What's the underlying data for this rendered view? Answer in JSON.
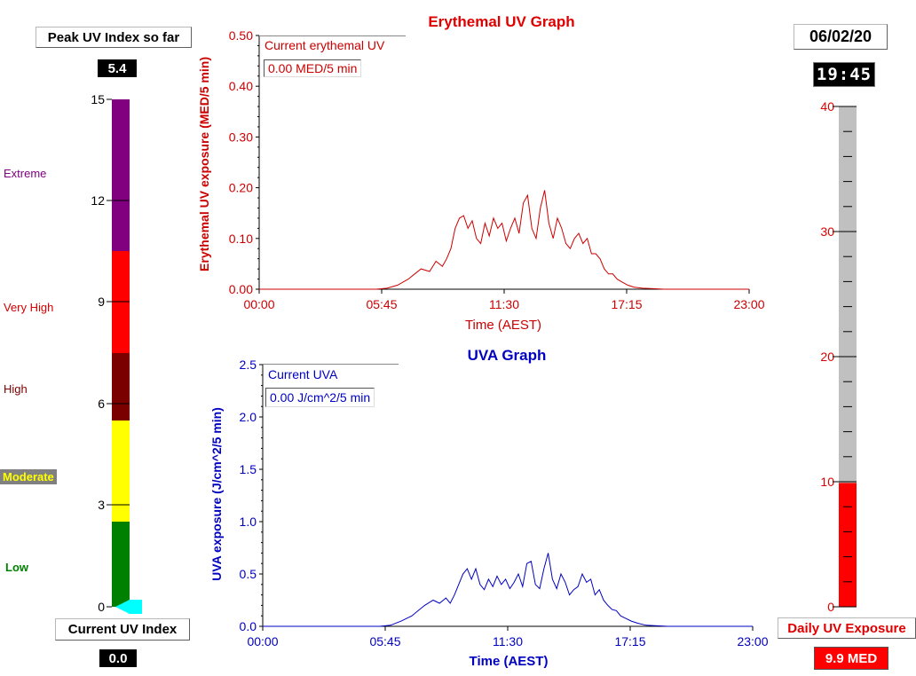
{
  "peak": {
    "title": "Peak UV Index so far",
    "value": "5.4"
  },
  "current": {
    "title": "Current UV Index",
    "value": "0.0"
  },
  "uv_scale": {
    "ticks": [
      "0",
      "3",
      "6",
      "9",
      "12",
      "15"
    ],
    "categories": [
      {
        "label": "Extreme",
        "color": "#800080"
      },
      {
        "label": "Very High",
        "color": "#d40000"
      },
      {
        "label": "High",
        "color": "#7a0000"
      },
      {
        "label": "Moderate",
        "color": "#ffff00"
      },
      {
        "label": "Low",
        "color": "#008000"
      }
    ],
    "current_value": 0.0
  },
  "datetime": {
    "date": "06/02/20",
    "time": "19:45"
  },
  "daily": {
    "title": "Daily UV Exposure",
    "value": "9.9 MED",
    "fill_value": 9.9,
    "ticks": [
      "0",
      "10",
      "20",
      "30",
      "40"
    ]
  },
  "erythemal": {
    "legend_title": "Current erythemal UV",
    "legend_value": "0.00 MED/5 min"
  },
  "uva": {
    "legend_title": "Current UVA",
    "legend_value": "0.00 J/cm^2/5 min"
  },
  "chart_data": [
    {
      "type": "line",
      "title": "Erythemal UV Graph",
      "xlabel": "Time (AEST)",
      "ylabel": "Erythemal UV exposure (MED/5 min)",
      "xlim": [
        0,
        23
      ],
      "ylim": [
        0,
        0.5
      ],
      "x_ticks": [
        "00:00",
        "05:45",
        "11:30",
        "17:15",
        "23:00"
      ],
      "y_ticks": [
        "0.00",
        "0.10",
        "0.20",
        "0.30",
        "0.40",
        "0.50"
      ],
      "color": "#cc0000",
      "series": [
        {
          "x": [
            0,
            5.5,
            6,
            6.5,
            7,
            7.3,
            7.6,
            8,
            8.3,
            8.6,
            8.8,
            9,
            9.2,
            9.4,
            9.6,
            9.8,
            10,
            10.2,
            10.4,
            10.6,
            10.8,
            11,
            11.2,
            11.4,
            11.6,
            11.8,
            12,
            12.2,
            12.4,
            12.6,
            12.8,
            13,
            13.2,
            13.4,
            13.6,
            13.8,
            14,
            14.2,
            14.4,
            14.6,
            14.8,
            15,
            15.2,
            15.4,
            15.6,
            15.8,
            16,
            16.2,
            16.4,
            16.6,
            16.8,
            17,
            17.3,
            17.6,
            18,
            18.5,
            19,
            23
          ],
          "y": [
            0,
            0,
            0.002,
            0.008,
            0.02,
            0.03,
            0.04,
            0.035,
            0.055,
            0.045,
            0.06,
            0.08,
            0.12,
            0.14,
            0.145,
            0.12,
            0.135,
            0.1,
            0.09,
            0.13,
            0.105,
            0.14,
            0.12,
            0.13,
            0.095,
            0.12,
            0.14,
            0.11,
            0.17,
            0.185,
            0.12,
            0.1,
            0.16,
            0.195,
            0.13,
            0.1,
            0.14,
            0.12,
            0.09,
            0.08,
            0.1,
            0.11,
            0.09,
            0.1,
            0.07,
            0.07,
            0.06,
            0.04,
            0.03,
            0.03,
            0.02,
            0.015,
            0.008,
            0.004,
            0.002,
            0.001,
            0,
            0
          ]
        }
      ]
    },
    {
      "type": "line",
      "title": "UVA Graph",
      "xlabel": "Time (AEST)",
      "ylabel": "UVA exposure  (J/cm^2/5 min)",
      "xlim": [
        0,
        23
      ],
      "ylim": [
        0,
        2.5
      ],
      "x_ticks": [
        "00:00",
        "05:45",
        "11:30",
        "17:15",
        "23:00"
      ],
      "y_ticks": [
        "0.0",
        "0.5",
        "1.0",
        "1.5",
        "2.0",
        "2.5"
      ],
      "color": "#0000c0",
      "series": [
        {
          "x": [
            0,
            5.5,
            6,
            6.5,
            7,
            7.3,
            7.6,
            8,
            8.3,
            8.6,
            8.8,
            9,
            9.2,
            9.4,
            9.6,
            9.8,
            10,
            10.2,
            10.4,
            10.6,
            10.8,
            11,
            11.2,
            11.4,
            11.6,
            11.8,
            12,
            12.2,
            12.4,
            12.6,
            12.8,
            13,
            13.2,
            13.4,
            13.6,
            13.8,
            14,
            14.2,
            14.4,
            14.6,
            14.8,
            15,
            15.2,
            15.4,
            15.6,
            15.8,
            16,
            16.2,
            16.4,
            16.6,
            16.8,
            17,
            17.3,
            17.6,
            18,
            18.5,
            19,
            23
          ],
          "y": [
            0,
            0,
            0.01,
            0.05,
            0.1,
            0.15,
            0.2,
            0.25,
            0.22,
            0.27,
            0.22,
            0.3,
            0.4,
            0.5,
            0.55,
            0.45,
            0.55,
            0.4,
            0.35,
            0.45,
            0.38,
            0.48,
            0.4,
            0.45,
            0.36,
            0.42,
            0.5,
            0.38,
            0.6,
            0.62,
            0.4,
            0.36,
            0.55,
            0.7,
            0.45,
            0.36,
            0.5,
            0.42,
            0.3,
            0.35,
            0.38,
            0.5,
            0.42,
            0.45,
            0.3,
            0.35,
            0.25,
            0.2,
            0.16,
            0.15,
            0.1,
            0.08,
            0.05,
            0.03,
            0.01,
            0.005,
            0,
            0
          ]
        }
      ]
    }
  ]
}
